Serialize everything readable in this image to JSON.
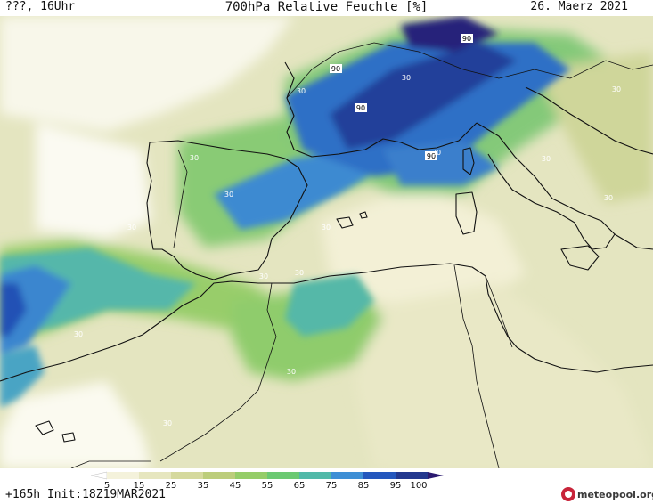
{
  "header": {
    "left": "???, 16Uhr",
    "title": "700hPa Relative Feuchte [%]",
    "right": "26. Maerz 2021"
  },
  "footer": {
    "left": "+165h Init:18Z19MAR2021",
    "brand": "meteopool.org"
  },
  "legend": {
    "ticks": [
      "5",
      "15",
      "25",
      "35",
      "45",
      "55",
      "65",
      "75",
      "85",
      "95",
      "100"
    ],
    "colors": [
      "#ffffff",
      "#f4f2db",
      "#e6e6bf",
      "#d5d99d",
      "#bccd7b",
      "#95cd68",
      "#6bc972",
      "#51b9a8",
      "#3e8fd5",
      "#2457bd",
      "#23388e",
      "#2b1a70"
    ]
  },
  "contour_labels": [
    {
      "text": "90"
    },
    {
      "text": "90"
    },
    {
      "text": "90"
    },
    {
      "text": "90"
    },
    {
      "text": "30"
    },
    {
      "text": "30"
    },
    {
      "text": "30"
    },
    {
      "text": "30"
    },
    {
      "text": "30"
    },
    {
      "text": "30"
    },
    {
      "text": "30"
    },
    {
      "text": "30"
    },
    {
      "text": "30"
    },
    {
      "text": "30"
    },
    {
      "text": "30"
    },
    {
      "text": "30"
    },
    {
      "text": "30"
    },
    {
      "text": "30"
    },
    {
      "text": "30"
    }
  ]
}
